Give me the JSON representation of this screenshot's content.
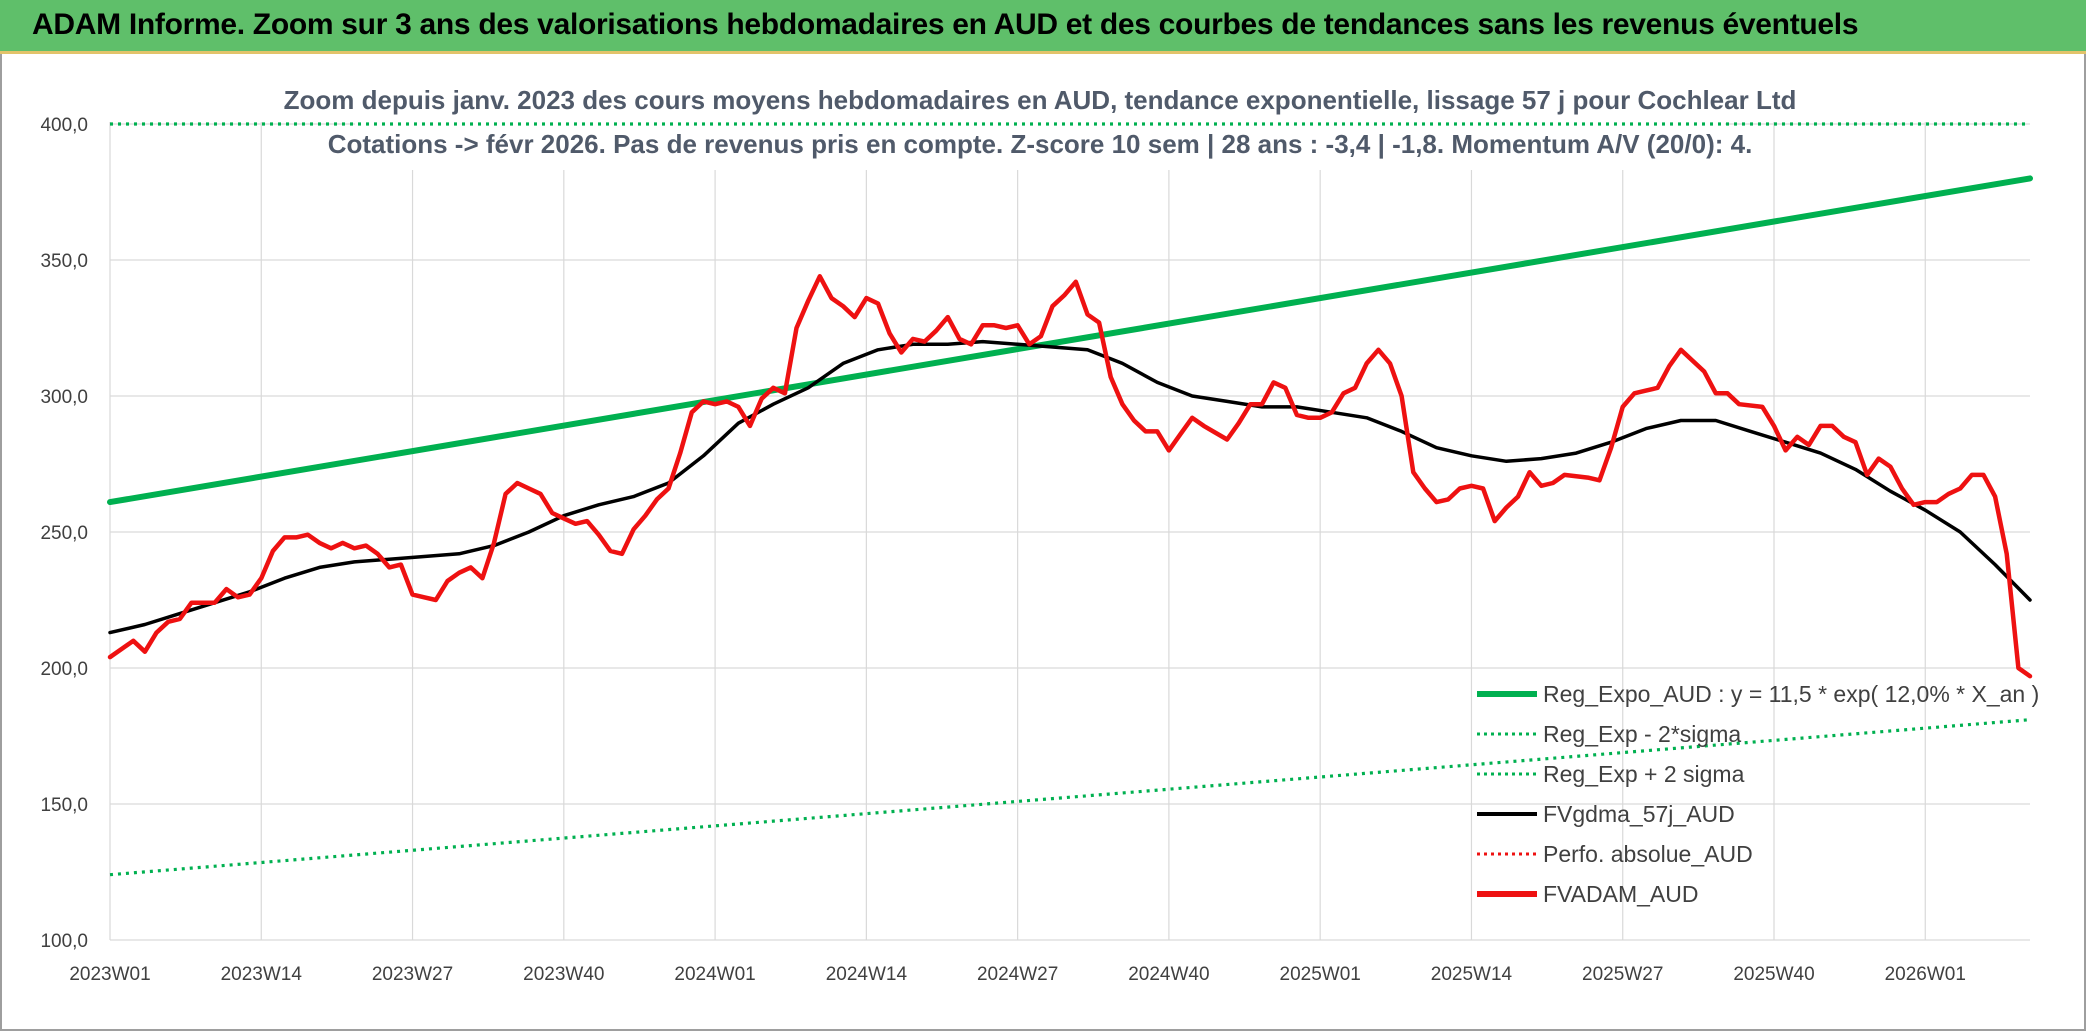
{
  "header": {
    "title": "ADAM Informe. Zoom sur 3 ans des valorisations hebdomadaires en AUD et des courbes de tendances sans les revenus éventuels"
  },
  "colors": {
    "title_bg": "#5fbf6a",
    "trend": "#00b050",
    "price": "#ee1111",
    "smooth": "#000000",
    "grid": "#d9d9d9"
  },
  "chart_data": {
    "type": "line",
    "subtitle_line1": "Zoom depuis janv. 2023 des cours moyens hebdomadaires en AUD, tendance exponentielle, lissage 57 j pour Cochlear Ltd",
    "subtitle_line2": "Cotations -> févr 2026. Pas de revenus pris en compte. Z-score 10 sem | 28 ans : -3,4 | -1,8. Momentum A/V (20/0): 4.",
    "ylim": [
      100,
      400
    ],
    "y_ticks": [
      "100,0",
      "150,0",
      "200,0",
      "250,0",
      "300,0",
      "350,0",
      "400,0"
    ],
    "y_tick_values": [
      100,
      150,
      200,
      250,
      300,
      350,
      400
    ],
    "weeks_total": 165,
    "x_ticks": [
      {
        "label": "2023W01",
        "week": 0
      },
      {
        "label": "2023W14",
        "week": 13
      },
      {
        "label": "2023W27",
        "week": 26
      },
      {
        "label": "2023W40",
        "week": 39
      },
      {
        "label": "2024W01",
        "week": 52
      },
      {
        "label": "2024W14",
        "week": 65
      },
      {
        "label": "2024W27",
        "week": 78
      },
      {
        "label": "2024W40",
        "week": 91
      },
      {
        "label": "2025W01",
        "week": 104
      },
      {
        "label": "2025W14",
        "week": 117
      },
      {
        "label": "2025W27",
        "week": 130
      },
      {
        "label": "2025W40",
        "week": 143
      },
      {
        "label": "2026W01",
        "week": 156
      }
    ],
    "legend": [
      {
        "label": "Reg_Expo_AUD : y = 11,5 * exp( 12,0% *  X_an )",
        "style": "solid-green"
      },
      {
        "label": "Reg_Exp - 2*sigma",
        "style": "dotted-green"
      },
      {
        "label": "Reg_Exp + 2 sigma",
        "style": "dotted-green"
      },
      {
        "label": "FVgdma_57j_AUD",
        "style": "solid-black"
      },
      {
        "label": "Perfo. absolue_AUD",
        "style": "dotted-red"
      },
      {
        "label": "FVADAM_AUD",
        "style": "solid-red"
      }
    ],
    "series": [
      {
        "name": "Reg_Expo_AUD",
        "style": "solid-green",
        "points": [
          [
            0,
            261
          ],
          [
            165,
            380
          ]
        ]
      },
      {
        "name": "Reg_Exp - 2*sigma",
        "style": "dotted-green",
        "points": [
          [
            0,
            124
          ],
          [
            165,
            181
          ]
        ]
      },
      {
        "name": "Reg_Exp + 2 sigma",
        "style": "dotted-green",
        "points": [
          [
            0,
            400
          ],
          [
            165,
            400
          ]
        ]
      },
      {
        "name": "FVgdma_57j_AUD",
        "style": "solid-black",
        "points": [
          [
            0,
            213
          ],
          [
            3,
            216
          ],
          [
            6,
            220
          ],
          [
            9,
            224
          ],
          [
            12,
            228
          ],
          [
            15,
            233
          ],
          [
            18,
            237
          ],
          [
            21,
            239
          ],
          [
            24,
            240
          ],
          [
            27,
            241
          ],
          [
            30,
            242
          ],
          [
            33,
            245
          ],
          [
            36,
            250
          ],
          [
            39,
            256
          ],
          [
            42,
            260
          ],
          [
            45,
            263
          ],
          [
            48,
            268
          ],
          [
            51,
            278
          ],
          [
            54,
            290
          ],
          [
            57,
            297
          ],
          [
            60,
            303
          ],
          [
            63,
            312
          ],
          [
            66,
            317
          ],
          [
            69,
            319
          ],
          [
            72,
            319
          ],
          [
            75,
            320
          ],
          [
            78,
            319
          ],
          [
            81,
            318
          ],
          [
            84,
            317
          ],
          [
            87,
            312
          ],
          [
            90,
            305
          ],
          [
            93,
            300
          ],
          [
            96,
            298
          ],
          [
            99,
            296
          ],
          [
            102,
            296
          ],
          [
            105,
            294
          ],
          [
            108,
            292
          ],
          [
            111,
            287
          ],
          [
            114,
            281
          ],
          [
            117,
            278
          ],
          [
            120,
            276
          ],
          [
            123,
            277
          ],
          [
            126,
            279
          ],
          [
            129,
            283
          ],
          [
            132,
            288
          ],
          [
            135,
            291
          ],
          [
            138,
            291
          ],
          [
            141,
            287
          ],
          [
            144,
            283
          ],
          [
            147,
            279
          ],
          [
            150,
            273
          ],
          [
            153,
            265
          ],
          [
            156,
            258
          ],
          [
            159,
            250
          ],
          [
            162,
            238
          ],
          [
            165,
            225
          ]
        ]
      },
      {
        "name": "Perfo. absolue_AUD",
        "style": "dotted-red",
        "points": []
      },
      {
        "name": "FVADAM_AUD",
        "style": "solid-red",
        "points": [
          [
            0,
            204
          ],
          [
            2,
            210
          ],
          [
            3,
            206
          ],
          [
            4,
            213
          ],
          [
            5,
            217
          ],
          [
            6,
            218
          ],
          [
            7,
            224
          ],
          [
            9,
            224
          ],
          [
            10,
            229
          ],
          [
            11,
            226
          ],
          [
            12,
            227
          ],
          [
            13,
            233
          ],
          [
            14,
            243
          ],
          [
            15,
            248
          ],
          [
            16,
            248
          ],
          [
            17,
            249
          ],
          [
            18,
            246
          ],
          [
            19,
            244
          ],
          [
            20,
            246
          ],
          [
            21,
            244
          ],
          [
            22,
            245
          ],
          [
            23,
            242
          ],
          [
            24,
            237
          ],
          [
            25,
            238
          ],
          [
            26,
            227
          ],
          [
            27,
            226
          ],
          [
            28,
            225
          ],
          [
            29,
            232
          ],
          [
            30,
            235
          ],
          [
            31,
            237
          ],
          [
            32,
            233
          ],
          [
            33,
            246
          ],
          [
            34,
            264
          ],
          [
            35,
            268
          ],
          [
            36,
            266
          ],
          [
            37,
            264
          ],
          [
            38,
            257
          ],
          [
            39,
            255
          ],
          [
            40,
            253
          ],
          [
            41,
            254
          ],
          [
            42,
            249
          ],
          [
            43,
            243
          ],
          [
            44,
            242
          ],
          [
            45,
            251
          ],
          [
            46,
            256
          ],
          [
            47,
            262
          ],
          [
            48,
            266
          ],
          [
            49,
            279
          ],
          [
            50,
            294
          ],
          [
            51,
            298
          ],
          [
            52,
            297
          ],
          [
            53,
            298
          ],
          [
            54,
            296
          ],
          [
            55,
            289
          ],
          [
            56,
            299
          ],
          [
            57,
            303
          ],
          [
            58,
            301
          ],
          [
            59,
            325
          ],
          [
            60,
            335
          ],
          [
            61,
            344
          ],
          [
            62,
            336
          ],
          [
            63,
            333
          ],
          [
            64,
            329
          ],
          [
            65,
            336
          ],
          [
            66,
            334
          ],
          [
            67,
            323
          ],
          [
            68,
            316
          ],
          [
            69,
            321
          ],
          [
            70,
            320
          ],
          [
            71,
            324
          ],
          [
            72,
            329
          ],
          [
            73,
            321
          ],
          [
            74,
            319
          ],
          [
            75,
            326
          ],
          [
            76,
            326
          ],
          [
            77,
            325
          ],
          [
            78,
            326
          ],
          [
            79,
            319
          ],
          [
            80,
            322
          ],
          [
            81,
            333
          ],
          [
            82,
            337
          ],
          [
            83,
            342
          ],
          [
            84,
            330
          ],
          [
            85,
            327
          ],
          [
            86,
            307
          ],
          [
            87,
            297
          ],
          [
            88,
            291
          ],
          [
            89,
            287
          ],
          [
            90,
            287
          ],
          [
            91,
            280
          ],
          [
            92,
            286
          ],
          [
            93,
            292
          ],
          [
            94,
            289
          ],
          [
            96,
            284
          ],
          [
            97,
            290
          ],
          [
            98,
            297
          ],
          [
            99,
            297
          ],
          [
            100,
            305
          ],
          [
            101,
            303
          ],
          [
            102,
            293
          ],
          [
            103,
            292
          ],
          [
            104,
            292
          ],
          [
            105,
            294
          ],
          [
            106,
            301
          ],
          [
            107,
            303
          ],
          [
            108,
            312
          ],
          [
            109,
            317
          ],
          [
            110,
            312
          ],
          [
            111,
            300
          ],
          [
            112,
            272
          ],
          [
            113,
            266
          ],
          [
            114,
            261
          ],
          [
            115,
            262
          ],
          [
            116,
            266
          ],
          [
            117,
            267
          ],
          [
            118,
            266
          ],
          [
            119,
            254
          ],
          [
            120,
            259
          ],
          [
            121,
            263
          ],
          [
            122,
            272
          ],
          [
            123,
            267
          ],
          [
            124,
            268
          ],
          [
            125,
            271
          ],
          [
            127,
            270
          ],
          [
            128,
            269
          ],
          [
            129,
            281
          ],
          [
            130,
            296
          ],
          [
            131,
            301
          ],
          [
            132,
            302
          ],
          [
            133,
            303
          ],
          [
            134,
            311
          ],
          [
            135,
            317
          ],
          [
            136,
            313
          ],
          [
            137,
            309
          ],
          [
            138,
            301
          ],
          [
            139,
            301
          ],
          [
            140,
            297
          ],
          [
            142,
            296
          ],
          [
            143,
            289
          ],
          [
            144,
            280
          ],
          [
            145,
            285
          ],
          [
            146,
            282
          ],
          [
            147,
            289
          ],
          [
            148,
            289
          ],
          [
            149,
            285
          ],
          [
            150,
            283
          ],
          [
            151,
            271
          ],
          [
            152,
            277
          ],
          [
            153,
            274
          ],
          [
            154,
            266
          ],
          [
            155,
            260
          ],
          [
            156,
            261
          ],
          [
            157,
            261
          ],
          [
            158,
            264
          ],
          [
            159,
            266
          ],
          [
            160,
            271
          ],
          [
            161,
            271
          ],
          [
            162,
            263
          ],
          [
            163,
            242
          ],
          [
            164,
            200
          ],
          [
            165,
            197
          ]
        ]
      }
    ]
  }
}
